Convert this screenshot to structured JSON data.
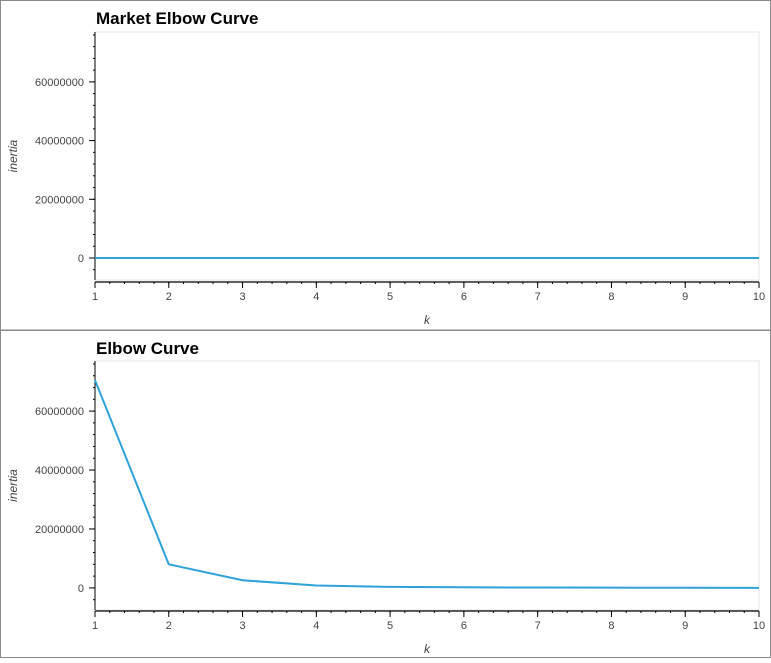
{
  "chart_data": [
    {
      "type": "line",
      "title": "Market Elbow Curve",
      "xlabel": "k",
      "ylabel": "inertia",
      "x": [
        1,
        2,
        3,
        4,
        5,
        6,
        7,
        8,
        9,
        10
      ],
      "series": [
        {
          "values": [
            8,
            6,
            5,
            4,
            3.5,
            3,
            2.5,
            2,
            1.8,
            1.5
          ]
        }
      ],
      "xlim": [
        1,
        10
      ],
      "ylim": [
        -7500000,
        77000000
      ],
      "yticks": [
        0,
        20000000,
        40000000,
        60000000
      ],
      "ytick_labels": [
        "0",
        "20000000",
        "40000000",
        "60000000"
      ],
      "xticks": [
        1,
        2,
        3,
        4,
        5,
        6,
        7,
        8,
        9,
        10
      ],
      "xtick_labels": [
        "1",
        "2",
        "3",
        "4",
        "5",
        "6",
        "7",
        "8",
        "9",
        "10"
      ],
      "line_color": "#30a2da",
      "grid": false
    },
    {
      "type": "line",
      "title": "Elbow Curve",
      "xlabel": "k",
      "ylabel": "inertia",
      "x": [
        1,
        2,
        3,
        4,
        5,
        6,
        7,
        8,
        9,
        10
      ],
      "series": [
        {
          "values": [
            70500000,
            8000000,
            2600000,
            800000,
            350000,
            200000,
            120000,
            80000,
            50000,
            0
          ]
        }
      ],
      "xlim": [
        1,
        10
      ],
      "ylim": [
        -7500000,
        77000000
      ],
      "yticks": [
        0,
        20000000,
        40000000,
        60000000
      ],
      "ytick_labels": [
        "0",
        "20000000",
        "40000000",
        "60000000"
      ],
      "xticks": [
        1,
        2,
        3,
        4,
        5,
        6,
        7,
        8,
        9,
        10
      ],
      "xtick_labels": [
        "1",
        "2",
        "3",
        "4",
        "5",
        "6",
        "7",
        "8",
        "9",
        "10"
      ],
      "line_color": "#30a2da",
      "grid": false
    }
  ]
}
